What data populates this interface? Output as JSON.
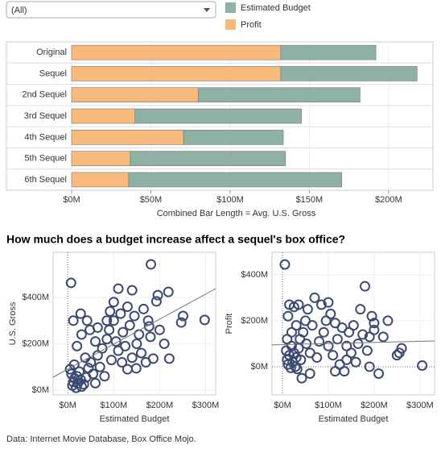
{
  "filter": {
    "value": "(All)"
  },
  "title": "How much does a budget increase affect a sequel's box office?",
  "footer": "Data: Internet Movie Database, Box Office Mojo.",
  "chart_data": [
    {
      "type": "stacked-bar-h",
      "categories": [
        "Original",
        "Sequel",
        "2nd Sequel",
        "3rd Sequel",
        "4th Sequel",
        "5th Sequel",
        "6th Sequel"
      ],
      "series": [
        {
          "name": "Profit",
          "color": "#f7b97c",
          "values": [
            132,
            132,
            80,
            40,
            70.6,
            37,
            36
          ]
        },
        {
          "name": "Estimated Budget",
          "color": "#8fb1a3",
          "values": [
            60,
            86,
            102,
            105,
            63,
            98,
            134.5
          ]
        }
      ],
      "xlim": [
        0,
        228
      ],
      "xticks": [
        {
          "value": 0,
          "label": "$0M"
        },
        {
          "value": 50,
          "label": "$50M"
        },
        {
          "value": 100,
          "label": "$100M"
        },
        {
          "value": 150,
          "label": "$150M"
        },
        {
          "value": 200,
          "label": "$200M"
        }
      ],
      "x_label": "Combined Bar Length = Avg. U.S. Gross"
    },
    {
      "type": "scatter",
      "x_label": "Estimated Budget",
      "y_label": "U.S. Gross",
      "color": "#3a4a72",
      "xlim": [
        -32,
        322
      ],
      "ylim": [
        -21,
        595
      ],
      "xticks": [
        {
          "value": 0,
          "label": "$0M"
        },
        {
          "value": 100,
          "label": "$100M"
        },
        {
          "value": 200,
          "label": "$200M"
        },
        {
          "value": 300,
          "label": "$300M"
        }
      ],
      "yticks": [
        {
          "value": 0,
          "label": "$0M"
        },
        {
          "value": 200,
          "label": "$200M"
        },
        {
          "value": 400,
          "label": "$400M"
        }
      ],
      "trend_line": {
        "x": [
          -32,
          322
        ],
        "y": [
          56,
          438
        ]
      },
      "x": [
        7,
        181,
        298,
        251,
        247,
        219,
        196,
        193,
        110,
        140,
        186,
        221,
        149,
        177,
        10,
        12,
        15,
        18,
        20,
        22,
        25,
        28,
        30,
        8,
        5,
        14,
        35,
        40,
        45,
        38,
        50,
        55,
        60,
        65,
        70,
        75,
        80,
        85,
        90,
        95,
        100,
        105,
        110,
        115,
        120,
        125,
        130,
        135,
        145,
        150,
        155,
        160,
        165,
        170,
        175,
        180,
        130,
        100,
        92,
        60,
        48,
        30,
        20,
        12,
        28,
        42,
        65,
        85,
        118,
        140,
        200,
        210
      ],
      "y": [
        463,
        543,
        303,
        320,
        292,
        424,
        410,
        383,
        438,
        431,
        136,
        136,
        94,
        275,
        20,
        35,
        50,
        10,
        60,
        30,
        80,
        45,
        15,
        70,
        90,
        110,
        25,
        55,
        95,
        140,
        120,
        70,
        30,
        150,
        100,
        180,
        60,
        220,
        260,
        130,
        300,
        210,
        170,
        330,
        250,
        190,
        90,
        280,
        320,
        200,
        240,
        160,
        350,
        120,
        300,
        230,
        360,
        380,
        340,
        210,
        260,
        240,
        190,
        300,
        330,
        300,
        270,
        300,
        120,
        140,
        260,
        200
      ]
    },
    {
      "type": "scatter",
      "x_label": "Estimated Budget",
      "y_label": "Profit",
      "color": "#3a4a72",
      "xlim": [
        -23,
        332
      ],
      "ylim": [
        -123,
        498
      ],
      "xticks": [
        {
          "value": 0,
          "label": "$0M"
        },
        {
          "value": 100,
          "label": "$100M"
        },
        {
          "value": 200,
          "label": "$200M"
        },
        {
          "value": 300,
          "label": "$300M"
        }
      ],
      "yticks": [
        {
          "value": 0,
          "label": "$0M"
        },
        {
          "value": 200,
          "label": "$200M"
        },
        {
          "value": 400,
          "label": "$400M"
        }
      ],
      "trend_line": {
        "x": [
          -23,
          332
        ],
        "y": [
          95,
          112
        ]
      },
      "x": [
        5,
        8,
        10,
        12,
        15,
        18,
        20,
        22,
        25,
        28,
        30,
        32,
        35,
        38,
        40,
        45,
        50,
        52,
        55,
        60,
        65,
        70,
        75,
        80,
        85,
        90,
        95,
        100,
        105,
        110,
        115,
        120,
        125,
        130,
        135,
        140,
        145,
        150,
        155,
        160,
        165,
        170,
        175,
        180,
        185,
        190,
        195,
        200,
        200,
        210,
        220,
        230,
        250,
        255,
        260,
        305,
        12,
        15,
        25,
        30,
        20,
        10,
        42,
        60,
        115,
        35,
        100,
        140,
        190
      ],
      "y": [
        445,
        70,
        30,
        10,
        50,
        -5,
        90,
        20,
        60,
        0,
        40,
        -10,
        80,
        120,
        30,
        150,
        200,
        100,
        250,
        60,
        180,
        300,
        40,
        110,
        270,
        150,
        200,
        90,
        230,
        50,
        190,
        120,
        10,
        170,
        -20,
        90,
        150,
        60,
        180,
        20,
        100,
        250,
        140,
        350,
        70,
        130,
        220,
        160,
        190,
        -30,
        130,
        200,
        50,
        60,
        80,
        5,
        220,
        270,
        260,
        180,
        150,
        120,
        -50,
        -30,
        -20,
        270,
        280,
        30,
        0
      ]
    }
  ]
}
